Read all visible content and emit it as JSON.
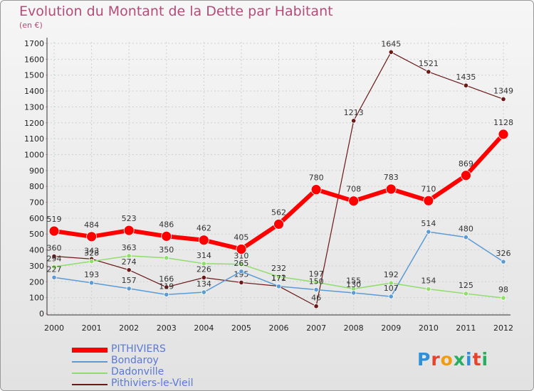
{
  "chart_data": {
    "type": "line",
    "title": "Evolution du Montant de la Dette par Habitant",
    "ylabel": "(en €)",
    "categories": [
      "2000",
      "2001",
      "2002",
      "2003",
      "2004",
      "2005",
      "2006",
      "2007",
      "2008",
      "2009",
      "2010",
      "2011",
      "2012"
    ],
    "ylim": [
      0,
      1700
    ],
    "yticks": [
      0,
      100,
      200,
      300,
      400,
      500,
      600,
      700,
      800,
      900,
      1000,
      1100,
      1200,
      1300,
      1400,
      1500,
      1600,
      1700
    ],
    "grid": true,
    "legend_position": "bottom-left",
    "series": [
      {
        "name": "PITHIVIERS",
        "values": [
          519,
          484,
          523,
          486,
          462,
          405,
          562,
          780,
          708,
          783,
          710,
          869,
          1128
        ],
        "color": "#ff0000",
        "width": 6
      },
      {
        "name": "Bondaroy",
        "values": [
          227,
          193,
          157,
          119,
          134,
          265,
          171,
          150,
          130,
          107,
          514,
          480,
          326
        ],
        "color": "#5b9bd5",
        "width": 1.5
      },
      {
        "name": "Dadonville",
        "values": [
          294,
          328,
          363,
          350,
          314,
          310,
          232,
          197,
          155,
          192,
          154,
          125,
          98
        ],
        "color": "#8fdd6a",
        "width": 1.5
      },
      {
        "name": "Pithiviers-le-Vieil",
        "values": [
          360,
          343,
          274,
          166,
          226,
          195,
          172,
          46,
          1213,
          1645,
          1521,
          1435,
          1349
        ],
        "color": "#6b1818",
        "width": 1.2
      }
    ]
  },
  "logo": {
    "text": "Proxiti"
  }
}
